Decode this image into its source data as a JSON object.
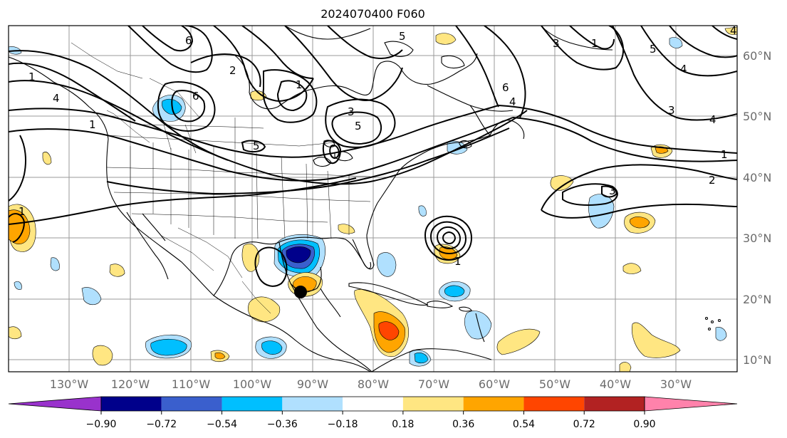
{
  "title": "2024070400 F060",
  "map": {
    "lat_labels": [
      "60°N",
      "50°N",
      "40°N",
      "30°N",
      "20°N",
      "10°N"
    ],
    "lon_labels": [
      "130°W",
      "120°W",
      "110°W",
      "100°W",
      "90°W",
      "80°W",
      "70°W",
      "60°W",
      "50°W",
      "40°W",
      "30°W"
    ]
  },
  "colorbar": {
    "colors": [
      "#9932cc",
      "#00008b",
      "#3a5fcd",
      "#00bfff",
      "#b0e0fe",
      "#ffffff",
      "#ffe682",
      "#ffa500",
      "#ff4500",
      "#b22222",
      "#ff82ab"
    ],
    "tick_labels": [
      "−0.90",
      "−0.72",
      "−0.54",
      "−0.36",
      "−0.18",
      "0.18",
      "0.36",
      "0.54",
      "0.72",
      "0.90"
    ]
  },
  "contour_labels": [
    "1",
    "6",
    "4",
    "1",
    "3",
    "5",
    "5",
    "6",
    "4",
    "3",
    "1",
    "2",
    "3",
    "4",
    "1",
    "2",
    "3",
    "4",
    "5",
    "5",
    "1",
    "1",
    "1",
    "6",
    "4"
  ]
}
